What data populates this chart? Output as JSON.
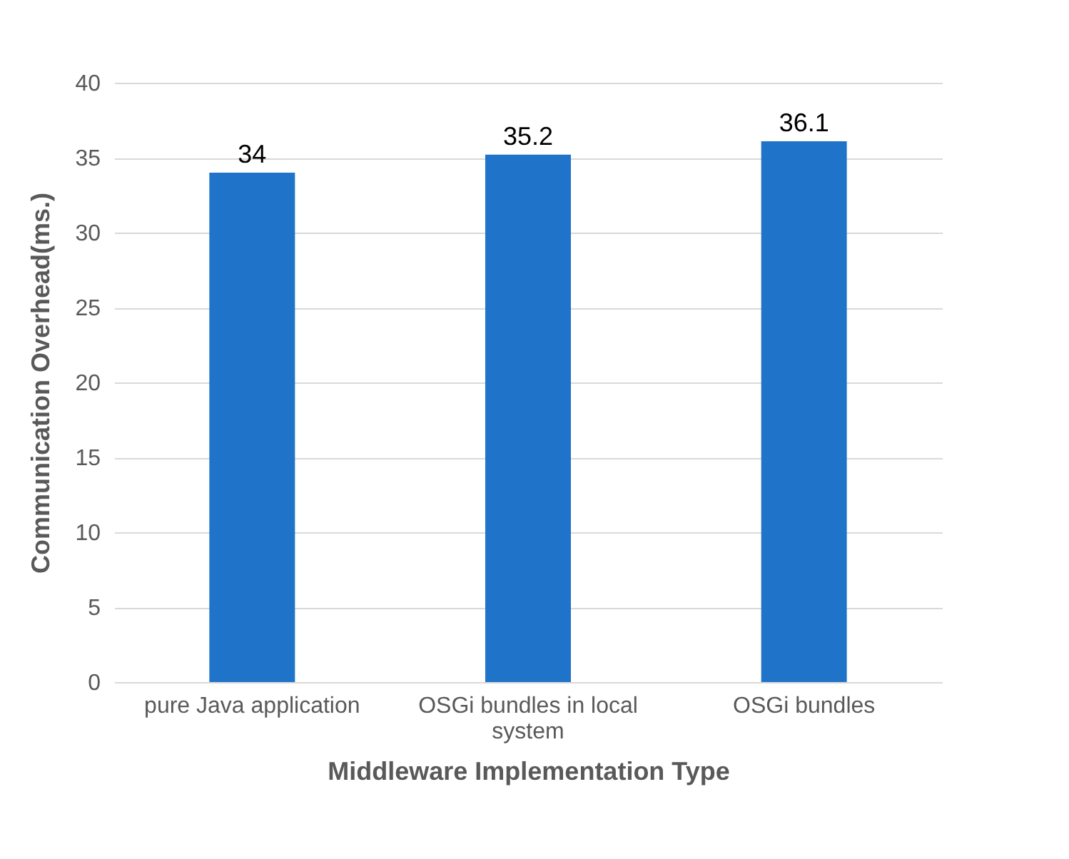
{
  "chart_data": {
    "type": "bar",
    "categories": [
      "pure Java application",
      "OSGi bundles in local system",
      "OSGi bundles"
    ],
    "values": [
      34,
      35.2,
      36.1
    ],
    "color": "#1f74c9",
    "xlabel": "Middleware Implementation Type",
    "ylabel": "Communication Overhead(ms.)",
    "ylim": [
      0,
      40
    ],
    "yticks": [
      0,
      5,
      10,
      15,
      20,
      25,
      30,
      35,
      40
    ],
    "grid": "y",
    "data_labels": true
  }
}
